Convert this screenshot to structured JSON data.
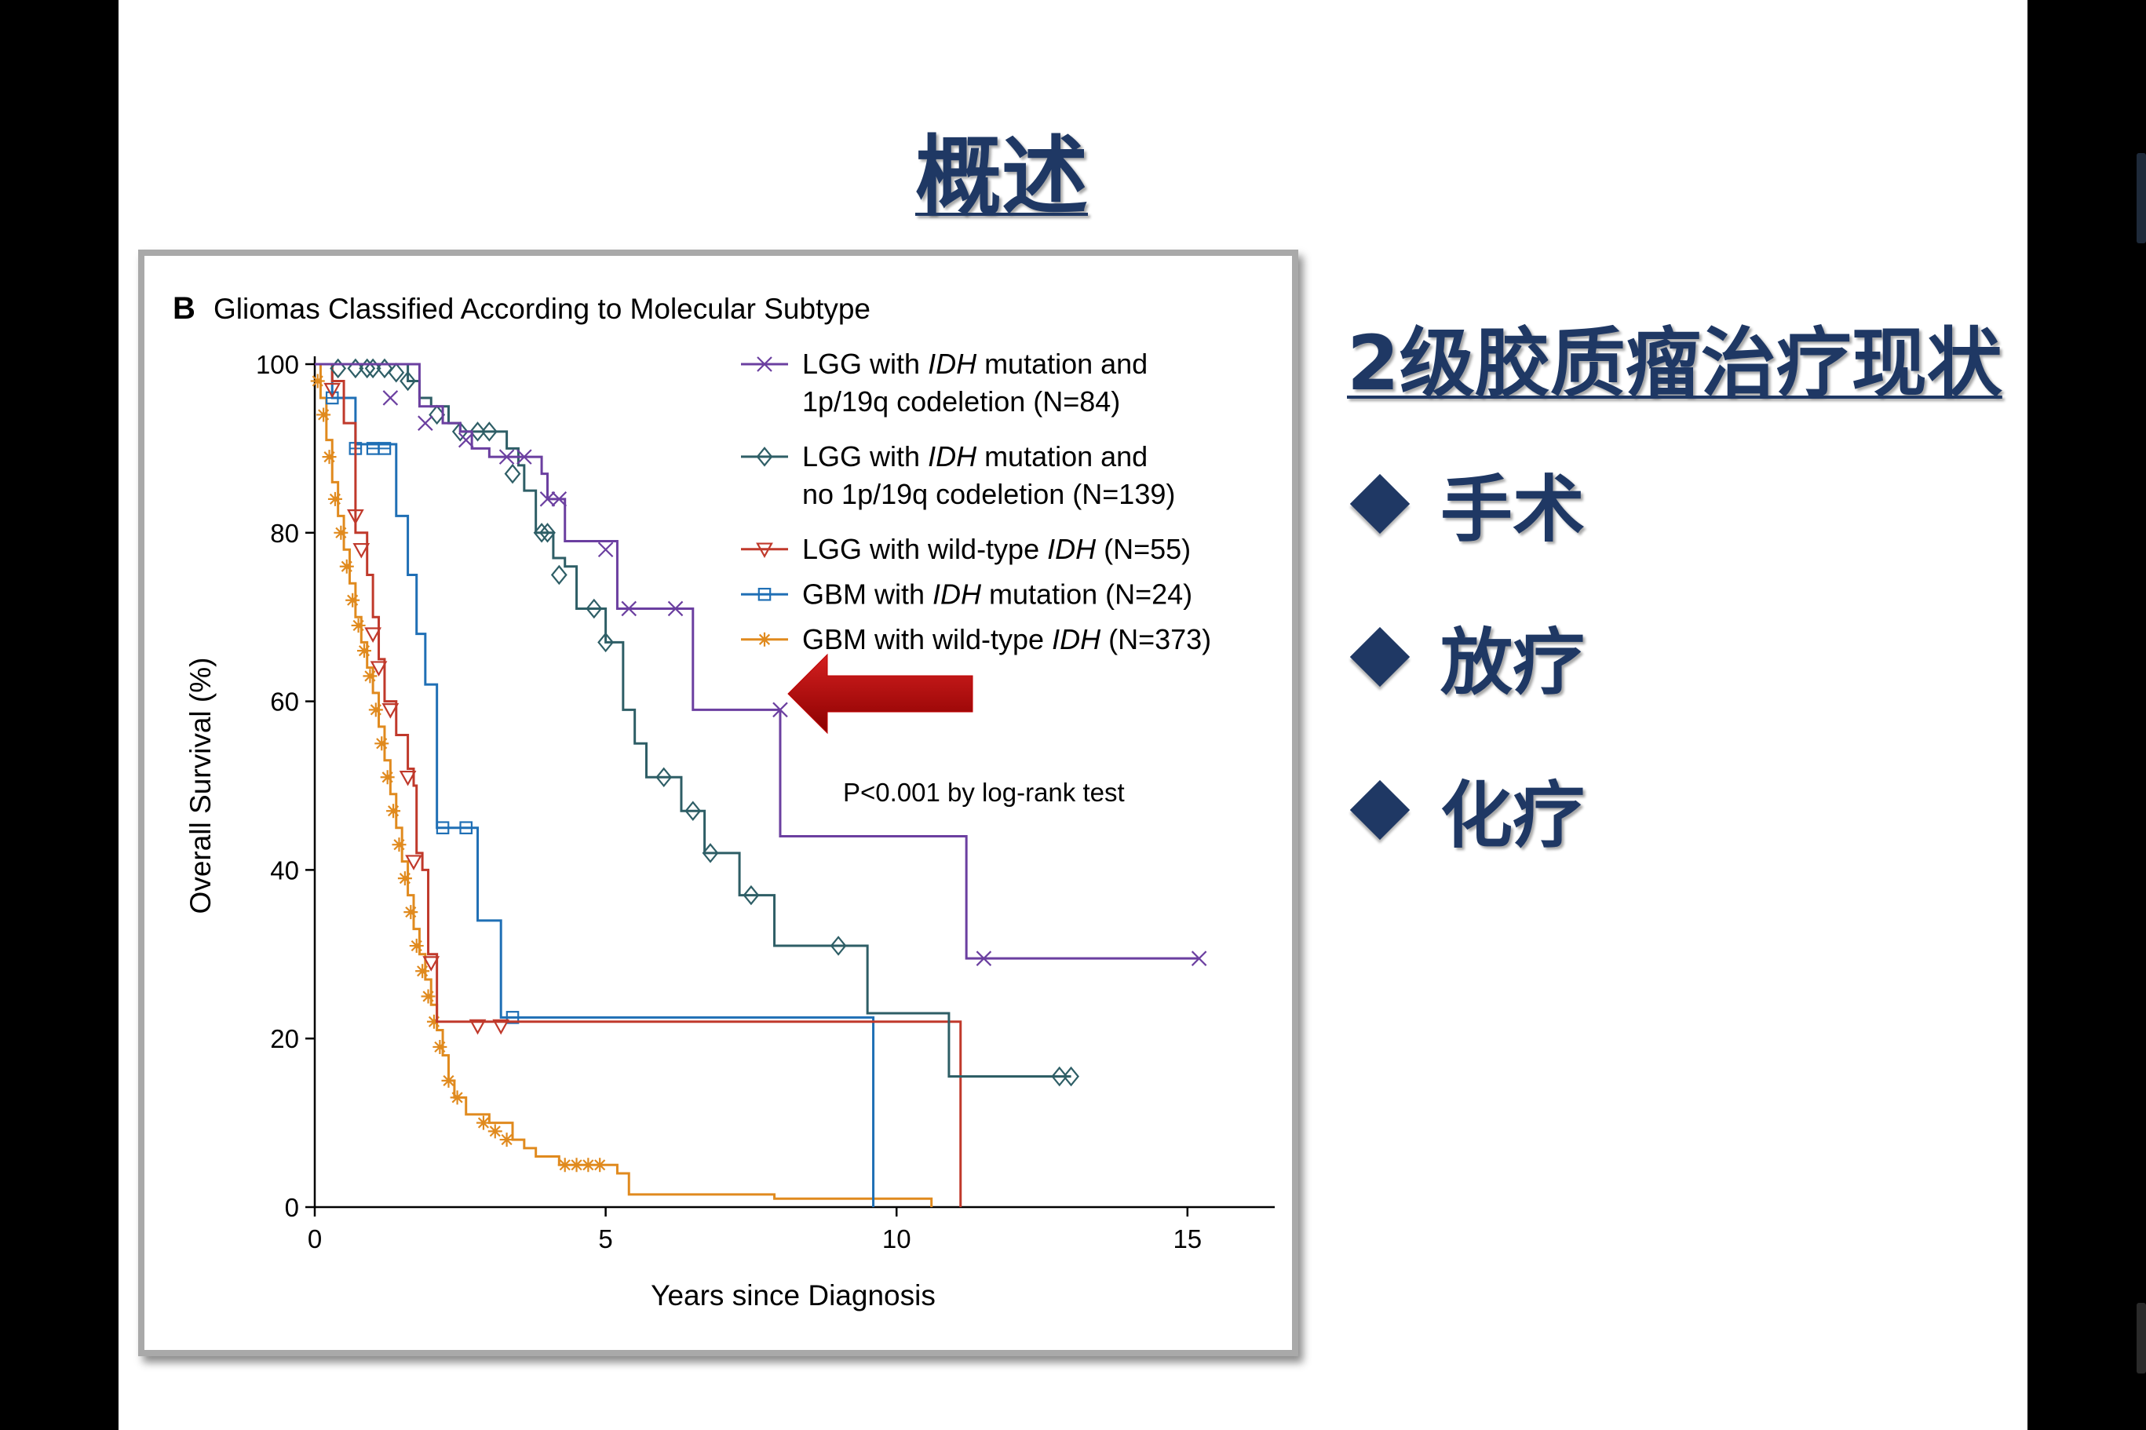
{
  "slide": {
    "title": "概述",
    "section_heading": "2级胶质瘤治疗现状",
    "bullets": [
      "手术",
      "放疗",
      "化疗"
    ],
    "colors": {
      "heading": "#1f3864",
      "arrow": "#c00000"
    }
  },
  "chart_data": {
    "type": "line",
    "panel_label": "B",
    "title": "Gliomas Classified According to Molecular Subtype",
    "xlabel": "Years since Diagnosis",
    "ylabel": "Overall Survival (%)",
    "xlim": [
      0,
      16.5
    ],
    "ylim": [
      0,
      100
    ],
    "xticks": [
      "0",
      "5",
      "10",
      "15"
    ],
    "yticks": [
      "0",
      "20",
      "40",
      "60",
      "80",
      "100"
    ],
    "grid": false,
    "legend_position": "top-right",
    "annotation": "P<0.001 by log-rank test",
    "series": [
      {
        "name": "LGG with IDH mutation and 1p/19q codeletion (N=84)",
        "legend_lines": [
          "LGG with |IDH| mutation and",
          "1p/19q codeletion (N=84)"
        ],
        "color": "#6b3fa0",
        "marker": "x",
        "steps": [
          [
            0,
            100
          ],
          [
            1.3,
            100
          ],
          [
            1.8,
            95
          ],
          [
            2.2,
            93
          ],
          [
            2.5,
            92
          ],
          [
            2.7,
            90
          ],
          [
            3.0,
            89
          ],
          [
            3.9,
            87
          ],
          [
            4.0,
            84
          ],
          [
            4.3,
            84
          ],
          [
            4.3,
            79
          ],
          [
            5.2,
            79
          ],
          [
            5.2,
            71
          ],
          [
            6.5,
            71
          ],
          [
            6.5,
            59
          ],
          [
            8.0,
            59
          ],
          [
            8.0,
            44
          ],
          [
            11.2,
            44
          ],
          [
            11.2,
            29.5
          ],
          [
            15.2,
            29.5
          ]
        ],
        "markers": [
          [
            1.3,
            96
          ],
          [
            1.9,
            93
          ],
          [
            2.6,
            91
          ],
          [
            3.3,
            89
          ],
          [
            3.6,
            89
          ],
          [
            4.0,
            84
          ],
          [
            4.2,
            84
          ],
          [
            5.0,
            78
          ],
          [
            5.4,
            71
          ],
          [
            6.2,
            71
          ],
          [
            8.0,
            59
          ],
          [
            11.5,
            29.5
          ],
          [
            15.2,
            29.5
          ]
        ]
      },
      {
        "name": "LGG with IDH mutation and no 1p/19q codeletion (N=139)",
        "legend_lines": [
          "LGG with |IDH| mutation and",
          "no 1p/19q codeletion (N=139)"
        ],
        "color": "#2e5e66",
        "marker": "diamond",
        "steps": [
          [
            0,
            100
          ],
          [
            1.5,
            100
          ],
          [
            1.6,
            98
          ],
          [
            1.8,
            96
          ],
          [
            2.0,
            95
          ],
          [
            2.3,
            93
          ],
          [
            2.5,
            92
          ],
          [
            3.1,
            92
          ],
          [
            3.3,
            90
          ],
          [
            3.5,
            88
          ],
          [
            3.6,
            85
          ],
          [
            3.8,
            80
          ],
          [
            4.1,
            80
          ],
          [
            4.1,
            77
          ],
          [
            4.3,
            76
          ],
          [
            4.5,
            71
          ],
          [
            4.8,
            71
          ],
          [
            5.0,
            67
          ],
          [
            5.2,
            67
          ],
          [
            5.3,
            59
          ],
          [
            5.5,
            55
          ],
          [
            5.7,
            51
          ],
          [
            6.1,
            51
          ],
          [
            6.3,
            47
          ],
          [
            6.6,
            47
          ],
          [
            6.7,
            42
          ],
          [
            7.3,
            42
          ],
          [
            7.3,
            37
          ],
          [
            7.9,
            37
          ],
          [
            7.9,
            31
          ],
          [
            9.5,
            31
          ],
          [
            9.5,
            23
          ],
          [
            10.9,
            23
          ],
          [
            10.9,
            15.5
          ],
          [
            13.0,
            15.5
          ]
        ],
        "markers": [
          [
            0.4,
            99.5
          ],
          [
            0.7,
            99.5
          ],
          [
            0.9,
            99.5
          ],
          [
            1.0,
            99.5
          ],
          [
            1.2,
            99.5
          ],
          [
            1.4,
            99
          ],
          [
            1.6,
            98
          ],
          [
            2.1,
            94
          ],
          [
            2.5,
            92
          ],
          [
            2.8,
            92
          ],
          [
            3.0,
            92
          ],
          [
            3.4,
            87
          ],
          [
            3.9,
            80
          ],
          [
            4.0,
            80
          ],
          [
            4.2,
            75
          ],
          [
            4.8,
            71
          ],
          [
            5.0,
            67
          ],
          [
            6.0,
            51
          ],
          [
            6.5,
            47
          ],
          [
            6.8,
            42
          ],
          [
            7.5,
            37
          ],
          [
            9.0,
            31
          ],
          [
            12.8,
            15.5
          ],
          [
            13.0,
            15.5
          ]
        ]
      },
      {
        "name": "LGG with wild-type IDH (N=55)",
        "legend_lines": [
          "LGG with wild-type |IDH| (N=55)"
        ],
        "color": "#c0392b",
        "marker": "triangle-down",
        "steps": [
          [
            0,
            100
          ],
          [
            0.3,
            98
          ],
          [
            0.5,
            93
          ],
          [
            0.7,
            80
          ],
          [
            0.9,
            75
          ],
          [
            1.0,
            70
          ],
          [
            1.1,
            65
          ],
          [
            1.2,
            60
          ],
          [
            1.35,
            60
          ],
          [
            1.4,
            56
          ],
          [
            1.6,
            56
          ],
          [
            1.6,
            52
          ],
          [
            1.7,
            50
          ],
          [
            1.75,
            42
          ],
          [
            1.85,
            40
          ],
          [
            1.95,
            30
          ],
          [
            2.1,
            30
          ],
          [
            2.1,
            22
          ],
          [
            3.0,
            22
          ],
          [
            11.1,
            22
          ],
          [
            11.1,
            0
          ]
        ],
        "markers": [
          [
            0.3,
            97
          ],
          [
            0.7,
            82
          ],
          [
            0.8,
            78
          ],
          [
            1.0,
            68
          ],
          [
            1.1,
            64
          ],
          [
            1.3,
            59
          ],
          [
            1.6,
            51
          ],
          [
            1.7,
            41
          ],
          [
            2.0,
            29
          ],
          [
            2.8,
            21.5
          ],
          [
            3.2,
            21.5
          ]
        ]
      },
      {
        "name": "GBM with IDH mutation (N=24)",
        "legend_lines": [
          "GBM with |IDH| mutation (N=24)"
        ],
        "color": "#1f6fb5",
        "marker": "square",
        "steps": [
          [
            0,
            100
          ],
          [
            0.3,
            96
          ],
          [
            0.7,
            90.5
          ],
          [
            1.4,
            90.5
          ],
          [
            1.4,
            82
          ],
          [
            1.6,
            75
          ],
          [
            1.75,
            68
          ],
          [
            1.9,
            62
          ],
          [
            2.1,
            45
          ],
          [
            2.8,
            45
          ],
          [
            2.8,
            34
          ],
          [
            3.2,
            34
          ],
          [
            3.2,
            22.5
          ],
          [
            9.6,
            22.5
          ],
          [
            9.6,
            0
          ]
        ],
        "markers": [
          [
            0.3,
            96
          ],
          [
            0.7,
            90
          ],
          [
            1.0,
            90
          ],
          [
            1.2,
            90
          ],
          [
            2.2,
            45
          ],
          [
            2.6,
            45
          ],
          [
            3.4,
            22.5
          ]
        ]
      },
      {
        "name": "GBM with wild-type IDH (N=373)",
        "legend_lines": [
          "GBM with wild-type |IDH| (N=373)"
        ],
        "color": "#e08a1e",
        "marker": "asterisk",
        "steps": [
          [
            0,
            100
          ],
          [
            0.1,
            96
          ],
          [
            0.2,
            91
          ],
          [
            0.3,
            86
          ],
          [
            0.4,
            82
          ],
          [
            0.5,
            78
          ],
          [
            0.6,
            74
          ],
          [
            0.7,
            70
          ],
          [
            0.8,
            67
          ],
          [
            0.9,
            64
          ],
          [
            1.0,
            61
          ],
          [
            1.1,
            57
          ],
          [
            1.2,
            53
          ],
          [
            1.3,
            49
          ],
          [
            1.4,
            45
          ],
          [
            1.5,
            41
          ],
          [
            1.6,
            37
          ],
          [
            1.7,
            33
          ],
          [
            1.8,
            30
          ],
          [
            1.9,
            27
          ],
          [
            2.0,
            24
          ],
          [
            2.1,
            21
          ],
          [
            2.2,
            18
          ],
          [
            2.3,
            15
          ],
          [
            2.4,
            13
          ],
          [
            2.6,
            11
          ],
          [
            3.0,
            10
          ],
          [
            3.4,
            8
          ],
          [
            3.6,
            7
          ],
          [
            3.8,
            6
          ],
          [
            4.2,
            5
          ],
          [
            5.0,
            5
          ],
          [
            5.2,
            4
          ],
          [
            5.4,
            1.5
          ],
          [
            7.9,
            1.5
          ],
          [
            7.9,
            1
          ],
          [
            10.6,
            1
          ],
          [
            10.6,
            0
          ]
        ],
        "markers": [
          [
            0.05,
            98
          ],
          [
            0.15,
            94
          ],
          [
            0.25,
            89
          ],
          [
            0.35,
            84
          ],
          [
            0.45,
            80
          ],
          [
            0.55,
            76
          ],
          [
            0.65,
            72
          ],
          [
            0.75,
            69
          ],
          [
            0.85,
            66
          ],
          [
            0.95,
            63
          ],
          [
            1.05,
            59
          ],
          [
            1.15,
            55
          ],
          [
            1.25,
            51
          ],
          [
            1.35,
            47
          ],
          [
            1.45,
            43
          ],
          [
            1.55,
            39
          ],
          [
            1.65,
            35
          ],
          [
            1.75,
            31
          ],
          [
            1.85,
            28
          ],
          [
            1.95,
            25
          ],
          [
            2.05,
            22
          ],
          [
            2.15,
            19
          ],
          [
            2.3,
            15
          ],
          [
            2.45,
            13
          ],
          [
            2.9,
            10
          ],
          [
            3.1,
            9
          ],
          [
            3.3,
            8
          ],
          [
            4.3,
            5
          ],
          [
            4.5,
            5
          ],
          [
            4.7,
            5
          ],
          [
            4.9,
            5
          ]
        ]
      }
    ]
  }
}
